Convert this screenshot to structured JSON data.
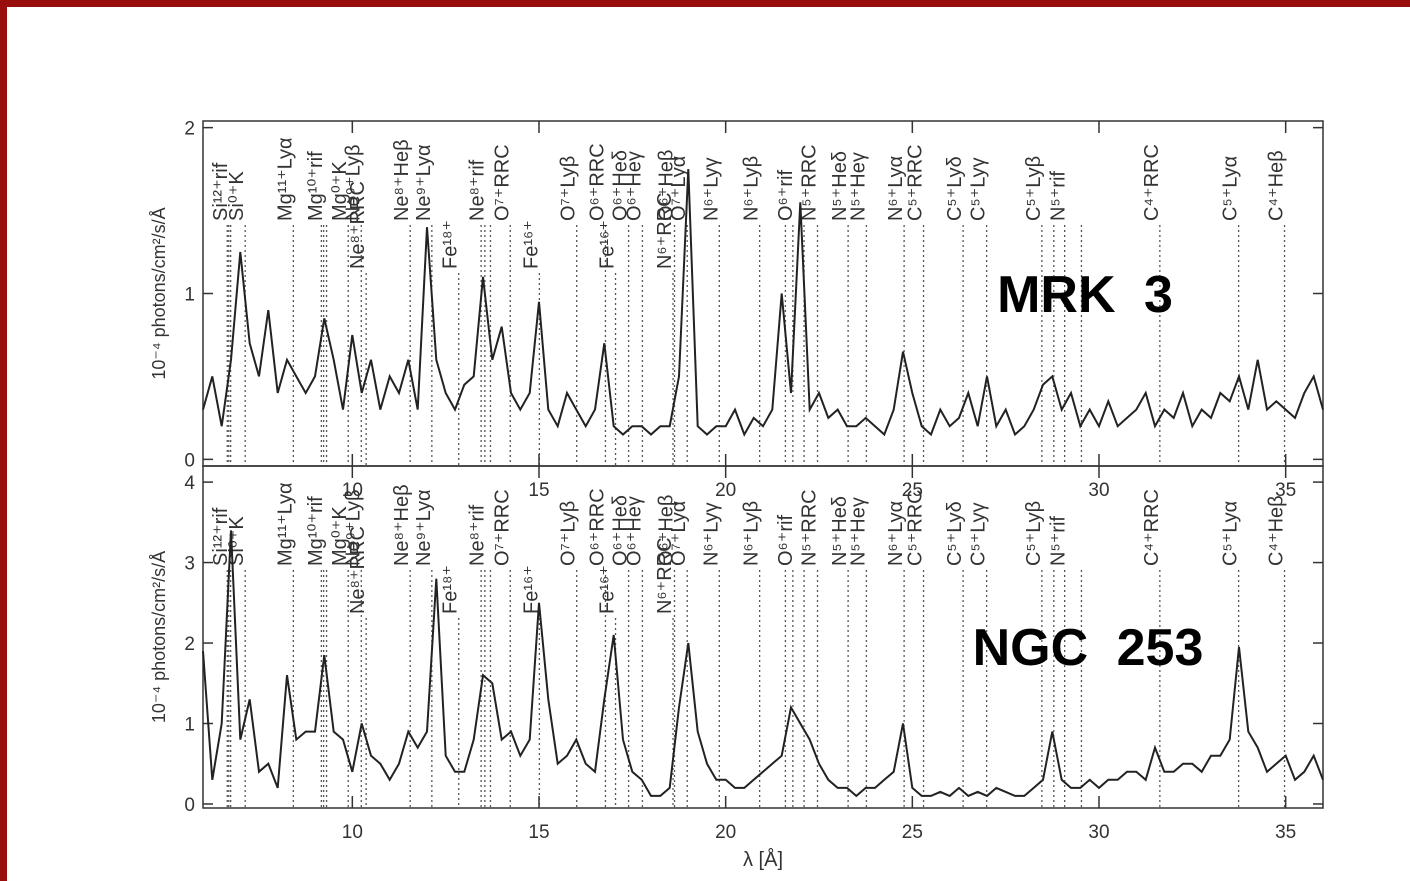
{
  "chart_data": [
    {
      "type": "line",
      "ylabel": "10⁻⁴ photons/cm²/s/Å",
      "annotation": "MRK 3",
      "xlim": [
        6,
        36
      ],
      "xticks": [
        10,
        15,
        20,
        25,
        30,
        35
      ],
      "ylim": [
        -0.04,
        2.04
      ],
      "yticks": [
        0,
        1,
        2
      ],
      "color": "#222222",
      "x": [
        6,
        6.25,
        6.5,
        6.75,
        7,
        7.25,
        7.5,
        7.75,
        8,
        8.25,
        8.5,
        8.75,
        9,
        9.25,
        9.5,
        9.75,
        10,
        10.25,
        10.5,
        10.75,
        11,
        11.25,
        11.5,
        11.75,
        12,
        12.25,
        12.5,
        12.75,
        13,
        13.25,
        13.5,
        13.75,
        14,
        14.25,
        14.5,
        14.75,
        15,
        15.25,
        15.5,
        15.75,
        16,
        16.25,
        16.5,
        16.75,
        17,
        17.25,
        17.5,
        17.75,
        18,
        18.25,
        18.5,
        18.75,
        19,
        19.25,
        19.5,
        19.75,
        20,
        20.25,
        20.5,
        20.75,
        21,
        21.25,
        21.5,
        21.75,
        22,
        22.25,
        22.5,
        22.75,
        23,
        23.25,
        23.5,
        23.75,
        24,
        24.25,
        24.5,
        24.75,
        25,
        25.25,
        25.5,
        25.75,
        26,
        26.25,
        26.5,
        26.75,
        27,
        27.25,
        27.5,
        27.75,
        28,
        28.25,
        28.5,
        28.75,
        29,
        29.25,
        29.5,
        29.75,
        30,
        30.25,
        30.5,
        30.75,
        31,
        31.25,
        31.5,
        31.75,
        32,
        32.25,
        32.5,
        32.75,
        33,
        33.25,
        33.5,
        33.75,
        34,
        34.25,
        34.5,
        34.75,
        35,
        35.25,
        35.5,
        35.75,
        36
      ],
      "values": [
        0.3,
        0.5,
        0.2,
        0.6,
        1.25,
        0.7,
        0.5,
        0.9,
        0.4,
        0.6,
        0.5,
        0.4,
        0.5,
        0.85,
        0.6,
        0.3,
        0.75,
        0.4,
        0.6,
        0.3,
        0.5,
        0.4,
        0.6,
        0.3,
        1.4,
        0.6,
        0.4,
        0.3,
        0.45,
        0.5,
        1.1,
        0.6,
        0.8,
        0.4,
        0.3,
        0.4,
        0.95,
        0.3,
        0.2,
        0.4,
        0.3,
        0.2,
        0.3,
        0.7,
        0.2,
        0.15,
        0.2,
        0.2,
        0.15,
        0.2,
        0.2,
        0.5,
        1.75,
        0.2,
        0.15,
        0.2,
        0.2,
        0.3,
        0.15,
        0.25,
        0.2,
        0.3,
        1.0,
        0.4,
        1.55,
        0.3,
        0.4,
        0.25,
        0.3,
        0.2,
        0.2,
        0.25,
        0.2,
        0.15,
        0.3,
        0.65,
        0.4,
        0.2,
        0.15,
        0.3,
        0.2,
        0.25,
        0.4,
        0.2,
        0.5,
        0.2,
        0.3,
        0.15,
        0.2,
        0.3,
        0.45,
        0.5,
        0.3,
        0.4,
        0.2,
        0.3,
        0.2,
        0.35,
        0.2,
        0.25,
        0.3,
        0.4,
        0.2,
        0.3,
        0.25,
        0.4,
        0.2,
        0.3,
        0.25,
        0.4,
        0.35,
        0.5,
        0.3,
        0.6,
        0.3,
        0.35,
        0.3,
        0.25,
        0.4,
        0.5,
        0.3
      ],
      "lines": [
        {
          "label": "Si¹²⁺rif",
          "wavelengths": [
            6.65,
            6.69,
            6.74
          ]
        },
        {
          "label": "Si⁰⁺K",
          "wavelengths": [
            7.13
          ]
        },
        {
          "label": "Mg¹¹⁺Lyα",
          "wavelengths": [
            8.42
          ]
        },
        {
          "label": "Mg¹⁰⁺rif",
          "wavelengths": [
            9.17,
            9.23,
            9.31
          ]
        },
        {
          "label": "Mg⁰⁺K",
          "wavelengths": [
            9.89
          ]
        },
        {
          "label": "Ne⁹⁺Lyβ",
          "wavelengths": [
            10.24
          ]
        },
        {
          "label": "Ne⁸⁺Heβ",
          "wavelengths": [
            11.55
          ]
        },
        {
          "label": "Ne⁹⁺Lyα",
          "wavelengths": [
            12.13
          ]
        },
        {
          "label": "Ne⁸⁺rif",
          "wavelengths": [
            13.45,
            13.55,
            13.7
          ]
        },
        {
          "label": "O⁷⁺RRC",
          "wavelengths": [
            14.23
          ]
        },
        {
          "label": "O⁷⁺Lyβ",
          "wavelengths": [
            16.01
          ]
        },
        {
          "label": "O⁶⁺RRC",
          "wavelengths": [
            16.78
          ]
        },
        {
          "label": "O⁶⁺Heδ",
          "wavelengths": [
            17.4
          ]
        },
        {
          "label": "O⁶⁺Heγ",
          "wavelengths": [
            17.77
          ]
        },
        {
          "label": "O⁶⁺Heβ",
          "wavelengths": [
            18.63
          ]
        },
        {
          "label": "O⁷⁺Lyα",
          "wavelengths": [
            18.97
          ]
        },
        {
          "label": "N⁶⁺Lyγ",
          "wavelengths": [
            19.83
          ]
        },
        {
          "label": "N⁶⁺Lyβ",
          "wavelengths": [
            20.91
          ]
        },
        {
          "label": "O⁶⁺rif",
          "wavelengths": [
            21.6,
            21.8,
            22.1
          ]
        },
        {
          "label": "N⁵⁺RRC",
          "wavelengths": [
            22.46
          ]
        },
        {
          "label": "N⁵⁺Heδ",
          "wavelengths": [
            23.28
          ]
        },
        {
          "label": "N⁵⁺Heγ",
          "wavelengths": [
            23.77
          ]
        },
        {
          "label": "N⁶⁺Lyα",
          "wavelengths": [
            24.78
          ]
        },
        {
          "label": "C⁵⁺RRC",
          "wavelengths": [
            25.3
          ]
        },
        {
          "label": "C⁵⁺Lyδ",
          "wavelengths": [
            26.36
          ]
        },
        {
          "label": "C⁵⁺Lyγ",
          "wavelengths": [
            26.99
          ]
        },
        {
          "label": "C⁵⁺Lyβ",
          "wavelengths": [
            28.47
          ]
        },
        {
          "label": "N⁵⁺rif",
          "wavelengths": [
            28.79,
            29.08,
            29.53
          ]
        },
        {
          "label": "C⁴⁺RRC",
          "wavelengths": [
            31.63
          ]
        },
        {
          "label": "C⁵⁺Lyα",
          "wavelengths": [
            33.74
          ]
        },
        {
          "label": "C⁴⁺Heβ",
          "wavelengths": [
            34.97
          ]
        }
      ],
      "lower_lines": [
        {
          "label": "Ne⁸⁺RRC",
          "wavelengths": [
            10.37
          ]
        },
        {
          "label": "Fe¹⁸⁺",
          "wavelengths": [
            12.85
          ]
        },
        {
          "label": "Fe¹⁶⁺",
          "wavelengths": [
            15.01
          ]
        },
        {
          "label": "Fe¹⁶⁺",
          "wavelengths": [
            17.05
          ]
        },
        {
          "label": "N⁶⁺RRC",
          "wavelengths": [
            18.59
          ]
        }
      ]
    },
    {
      "type": "line",
      "ylabel": "10⁻⁴ photons/cm²/s/Å",
      "xlabel": "λ [Å]",
      "annotation": "NGC 253",
      "xlim": [
        6,
        36
      ],
      "xticks": [
        10,
        15,
        20,
        25,
        30,
        35
      ],
      "ylim": [
        -0.05,
        4.2
      ],
      "yticks": [
        0,
        1,
        2,
        3,
        4
      ],
      "color": "#222222",
      "x": [
        6,
        6.25,
        6.5,
        6.75,
        7,
        7.25,
        7.5,
        7.75,
        8,
        8.25,
        8.5,
        8.75,
        9,
        9.25,
        9.5,
        9.75,
        10,
        10.25,
        10.5,
        10.75,
        11,
        11.25,
        11.5,
        11.75,
        12,
        12.25,
        12.5,
        12.75,
        13,
        13.25,
        13.5,
        13.75,
        14,
        14.25,
        14.5,
        14.75,
        15,
        15.25,
        15.5,
        15.75,
        16,
        16.25,
        16.5,
        16.75,
        17,
        17.25,
        17.5,
        17.75,
        18,
        18.25,
        18.5,
        18.75,
        19,
        19.25,
        19.5,
        19.75,
        20,
        20.25,
        20.5,
        20.75,
        21,
        21.25,
        21.5,
        21.75,
        22,
        22.25,
        22.5,
        22.75,
        23,
        23.25,
        23.5,
        23.75,
        24,
        24.25,
        24.5,
        24.75,
        25,
        25.25,
        25.5,
        25.75,
        26,
        26.25,
        26.5,
        26.75,
        27,
        27.25,
        27.5,
        27.75,
        28,
        28.25,
        28.5,
        28.75,
        29,
        29.25,
        29.5,
        29.75,
        30,
        30.25,
        30.5,
        30.75,
        31,
        31.25,
        31.5,
        31.75,
        32,
        32.25,
        32.5,
        32.75,
        33,
        33.25,
        33.5,
        33.75,
        34,
        34.25,
        34.5,
        34.75,
        35,
        35.25,
        35.5,
        35.75,
        36
      ],
      "values": [
        1.9,
        0.3,
        1.0,
        3.4,
        0.8,
        1.3,
        0.4,
        0.5,
        0.2,
        1.6,
        0.8,
        0.9,
        0.9,
        1.85,
        0.9,
        0.8,
        0.4,
        1.0,
        0.6,
        0.5,
        0.3,
        0.5,
        0.9,
        0.7,
        0.9,
        2.8,
        0.6,
        0.4,
        0.4,
        0.8,
        1.6,
        1.5,
        0.8,
        0.9,
        0.6,
        0.8,
        2.5,
        1.3,
        0.5,
        0.6,
        0.8,
        0.5,
        0.4,
        1.3,
        2.1,
        0.8,
        0.4,
        0.3,
        0.1,
        0.1,
        0.2,
        1.2,
        2.0,
        0.9,
        0.5,
        0.3,
        0.3,
        0.2,
        0.2,
        0.3,
        0.4,
        0.5,
        0.6,
        1.2,
        1.0,
        0.8,
        0.5,
        0.3,
        0.2,
        0.2,
        0.1,
        0.2,
        0.2,
        0.3,
        0.4,
        1.0,
        0.2,
        0.1,
        0.1,
        0.15,
        0.1,
        0.2,
        0.1,
        0.15,
        0.1,
        0.2,
        0.15,
        0.1,
        0.1,
        0.2,
        0.3,
        0.9,
        0.3,
        0.2,
        0.2,
        0.3,
        0.2,
        0.3,
        0.3,
        0.4,
        0.4,
        0.3,
        0.7,
        0.4,
        0.4,
        0.5,
        0.5,
        0.4,
        0.6,
        0.6,
        0.8,
        1.95,
        0.9,
        0.7,
        0.4,
        0.5,
        0.6,
        0.3,
        0.4,
        0.6,
        0.3
      ],
      "lines": [
        {
          "label": "Si¹²⁺rif",
          "wavelengths": [
            6.65,
            6.69,
            6.74
          ]
        },
        {
          "label": "Si⁰⁺K",
          "wavelengths": [
            7.13
          ]
        },
        {
          "label": "Mg¹¹⁺Lyα",
          "wavelengths": [
            8.42
          ]
        },
        {
          "label": "Mg¹⁰⁺rif",
          "wavelengths": [
            9.17,
            9.23,
            9.31
          ]
        },
        {
          "label": "Mg⁰⁺K",
          "wavelengths": [
            9.89
          ]
        },
        {
          "label": "Ne⁹⁺Lyβ",
          "wavelengths": [
            10.24
          ]
        },
        {
          "label": "Ne⁸⁺Heβ",
          "wavelengths": [
            11.55
          ]
        },
        {
          "label": "Ne⁹⁺Lyα",
          "wavelengths": [
            12.13
          ]
        },
        {
          "label": "Ne⁸⁺rif",
          "wavelengths": [
            13.45,
            13.55,
            13.7
          ]
        },
        {
          "label": "O⁷⁺RRC",
          "wavelengths": [
            14.23
          ]
        },
        {
          "label": "O⁷⁺Lyβ",
          "wavelengths": [
            16.01
          ]
        },
        {
          "label": "O⁶⁺RRC",
          "wavelengths": [
            16.78
          ]
        },
        {
          "label": "O⁶⁺Heδ",
          "wavelengths": [
            17.4
          ]
        },
        {
          "label": "O⁶⁺Heγ",
          "wavelengths": [
            17.77
          ]
        },
        {
          "label": "O⁶⁺Heβ",
          "wavelengths": [
            18.63
          ]
        },
        {
          "label": "O⁷⁺Lyα",
          "wavelengths": [
            18.97
          ]
        },
        {
          "label": "N⁶⁺Lyγ",
          "wavelengths": [
            19.83
          ]
        },
        {
          "label": "N⁶⁺Lyβ",
          "wavelengths": [
            20.91
          ]
        },
        {
          "label": "O⁶⁺rif",
          "wavelengths": [
            21.6,
            21.8,
            22.1
          ]
        },
        {
          "label": "N⁵⁺RRC",
          "wavelengths": [
            22.46
          ]
        },
        {
          "label": "N⁵⁺Heδ",
          "wavelengths": [
            23.28
          ]
        },
        {
          "label": "N⁵⁺Heγ",
          "wavelengths": [
            23.77
          ]
        },
        {
          "label": "N⁶⁺Lyα",
          "wavelengths": [
            24.78
          ]
        },
        {
          "label": "C⁵⁺RRC",
          "wavelengths": [
            25.3
          ]
        },
        {
          "label": "C⁵⁺Lyδ",
          "wavelengths": [
            26.36
          ]
        },
        {
          "label": "C⁵⁺Lyγ",
          "wavelengths": [
            26.99
          ]
        },
        {
          "label": "C⁵⁺Lyβ",
          "wavelengths": [
            28.47
          ]
        },
        {
          "label": "N⁵⁺rif",
          "wavelengths": [
            28.79,
            29.08,
            29.53
          ]
        },
        {
          "label": "C⁴⁺RRC",
          "wavelengths": [
            31.63
          ]
        },
        {
          "label": "C⁵⁺Lyα",
          "wavelengths": [
            33.74
          ]
        },
        {
          "label": "C⁴⁺Heβ",
          "wavelengths": [
            34.97
          ]
        }
      ],
      "lower_lines": [
        {
          "label": "Ne⁸⁺RRC",
          "wavelengths": [
            10.37
          ]
        },
        {
          "label": "Fe¹⁸⁺",
          "wavelengths": [
            12.85
          ]
        },
        {
          "label": "Fe¹⁶⁺",
          "wavelengths": [
            15.01
          ]
        },
        {
          "label": "Fe¹⁶⁺",
          "wavelengths": [
            17.05
          ]
        },
        {
          "label": "N⁶⁺RRC",
          "wavelengths": [
            18.59
          ]
        }
      ]
    }
  ]
}
